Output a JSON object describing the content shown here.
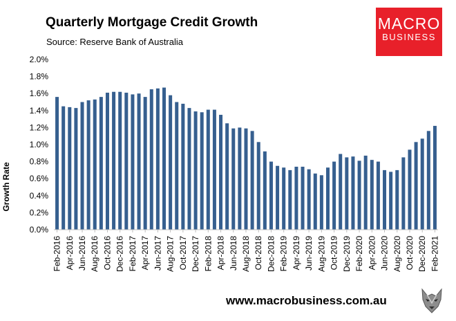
{
  "header": {
    "title": "Quarterly Mortgage Credit Growth",
    "source": "Source: Reserve Bank of Australia"
  },
  "logo": {
    "line1": "MACRO",
    "line2": "BUSINESS"
  },
  "footer": {
    "website": "www.macrobusiness.com.au",
    "mascot_icon": "wolf-icon"
  },
  "colors": {
    "bar": "#365f8f",
    "logo_bg": "#e8202a",
    "grid": "#d9d9d9"
  },
  "chart_data": {
    "type": "bar",
    "title": "Quarterly Mortgage Credit Growth",
    "subtitle": "Source: Reserve Bank of Australia",
    "ylabel": "Growth Rate",
    "xlabel": "",
    "ylim": [
      0,
      2.0
    ],
    "yticks": [
      "0.0%",
      "0.2%",
      "0.4%",
      "0.6%",
      "0.8%",
      "1.0%",
      "1.2%",
      "1.4%",
      "1.6%",
      "1.8%",
      "2.0%"
    ],
    "grid": false,
    "legend": "none",
    "categories": [
      "Feb-2016",
      "Mar-2016",
      "Apr-2016",
      "May-2016",
      "Jun-2016",
      "Jul-2016",
      "Aug-2016",
      "Sep-2016",
      "Oct-2016",
      "Nov-2016",
      "Dec-2016",
      "Jan-2017",
      "Feb-2017",
      "Mar-2017",
      "Apr-2017",
      "May-2017",
      "Jun-2017",
      "Jul-2017",
      "Aug-2017",
      "Sep-2017",
      "Oct-2017",
      "Nov-2017",
      "Dec-2017",
      "Jan-2018",
      "Feb-2018",
      "Mar-2018",
      "Apr-2018",
      "May-2018",
      "Jun-2018",
      "Jul-2018",
      "Aug-2018",
      "Sep-2018",
      "Oct-2018",
      "Nov-2018",
      "Dec-2018",
      "Jan-2019",
      "Feb-2019",
      "Mar-2019",
      "Apr-2019",
      "May-2019",
      "Jun-2019",
      "Jul-2019",
      "Aug-2019",
      "Sep-2019",
      "Oct-2019",
      "Nov-2019",
      "Dec-2019",
      "Jan-2020",
      "Feb-2020",
      "Mar-2020",
      "Apr-2020",
      "May-2020",
      "Jun-2020",
      "Jul-2020",
      "Aug-2020",
      "Sep-2020",
      "Oct-2020",
      "Nov-2020",
      "Dec-2020",
      "Jan-2021",
      "Feb-2021"
    ],
    "tick_labels": [
      "Feb-2016",
      "Apr-2016",
      "Jun-2016",
      "Aug-2016",
      "Oct-2016",
      "Dec-2016",
      "Feb-2017",
      "Apr-2017",
      "Jun-2017",
      "Aug-2017",
      "Oct-2017",
      "Dec-2017",
      "Feb-2018",
      "Apr-2018",
      "Jun-2018",
      "Aug-2018",
      "Oct-2018",
      "Dec-2018",
      "Feb-2019",
      "Apr-2019",
      "Jun-2019",
      "Aug-2019",
      "Oct-2019",
      "Dec-2019",
      "Feb-2020",
      "Apr-2020",
      "Jun-2020",
      "Aug-2020",
      "Oct-2020",
      "Dec-2020",
      "Feb-2021"
    ],
    "values": [
      1.56,
      1.45,
      1.44,
      1.43,
      1.5,
      1.52,
      1.53,
      1.56,
      1.61,
      1.62,
      1.62,
      1.61,
      1.59,
      1.6,
      1.56,
      1.65,
      1.66,
      1.67,
      1.58,
      1.5,
      1.48,
      1.43,
      1.39,
      1.38,
      1.41,
      1.41,
      1.35,
      1.25,
      1.19,
      1.2,
      1.19,
      1.16,
      1.03,
      0.92,
      0.8,
      0.75,
      0.73,
      0.7,
      0.74,
      0.74,
      0.71,
      0.66,
      0.64,
      0.73,
      0.8,
      0.89,
      0.85,
      0.86,
      0.81,
      0.87,
      0.82,
      0.8,
      0.7,
      0.68,
      0.7,
      0.85,
      0.94,
      1.03,
      1.07,
      1.16,
      1.22
    ]
  }
}
